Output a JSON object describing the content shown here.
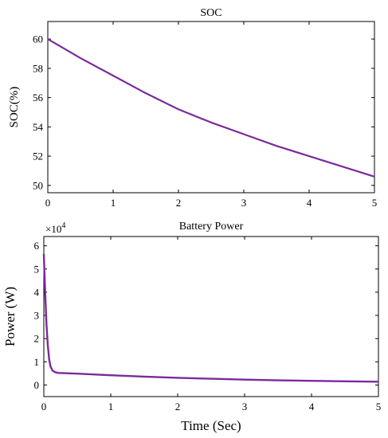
{
  "chart_data": [
    {
      "type": "line",
      "title": "SOC",
      "xlabel": "",
      "ylabel": "SOC(%)",
      "xlim": [
        0,
        5
      ],
      "ylim": [
        49.5,
        61.2
      ],
      "xticks": [
        "0",
        "1",
        "2",
        "3",
        "4",
        "5"
      ],
      "yticks": [
        "50",
        "52",
        "54",
        "56",
        "58",
        "60"
      ],
      "grid": false,
      "color": "#7B2A9B",
      "series": [
        {
          "x": [
            0,
            0.5,
            1,
            1.5,
            2,
            2.5,
            3,
            3.5,
            4,
            4.5,
            5
          ],
          "y": [
            60.0,
            58.7,
            57.5,
            56.3,
            55.2,
            54.3,
            53.5,
            52.7,
            52.0,
            51.3,
            50.6
          ]
        }
      ]
    },
    {
      "type": "line",
      "title": "Battery Power",
      "xlabel": "Time (Sec)",
      "ylabel": "Power (W)",
      "y_exponent_label": "×10",
      "y_exponent": "4",
      "xlim": [
        0,
        5
      ],
      "ylim": [
        -0.5,
        6.4
      ],
      "y_multiplier": 10000,
      "xticks": [
        "0",
        "1",
        "2",
        "3",
        "4",
        "5"
      ],
      "yticks": [
        "0",
        "1",
        "2",
        "3",
        "4",
        "5",
        "6"
      ],
      "grid": false,
      "color": "#7B2A9B",
      "series": [
        {
          "x": [
            0,
            0.02,
            0.04,
            0.06,
            0.08,
            0.1,
            0.13,
            0.17,
            0.22,
            0.3,
            0.5,
            1,
            1.5,
            2,
            2.5,
            3,
            3.5,
            4,
            4.5,
            5
          ],
          "y": [
            5.65,
            4.0,
            2.6,
            1.7,
            1.1,
            0.8,
            0.62,
            0.55,
            0.52,
            0.51,
            0.49,
            0.42,
            0.36,
            0.31,
            0.27,
            0.23,
            0.2,
            0.18,
            0.16,
            0.14
          ]
        }
      ]
    }
  ]
}
